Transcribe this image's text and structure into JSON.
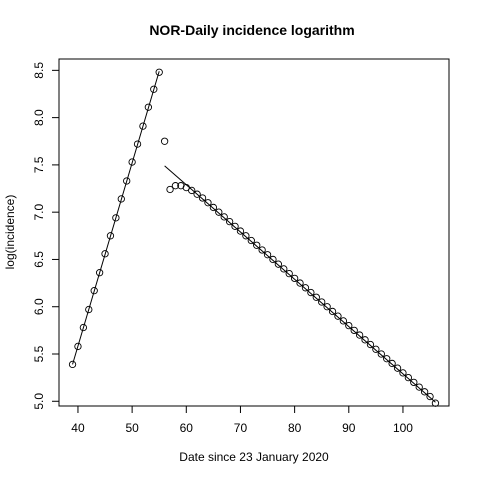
{
  "chart_data": {
    "type": "scatter",
    "title": "NOR-Daily incidence logarithm",
    "xlabel": "Date since 23 January 2020",
    "ylabel": "log(incidence)",
    "xlim": [
      36.5,
      108.5
    ],
    "ylim": [
      4.95,
      8.62
    ],
    "xticks": [
      40,
      50,
      60,
      70,
      80,
      90,
      100
    ],
    "yticks": [
      5.0,
      5.5,
      6.0,
      6.5,
      7.0,
      7.5,
      8.0,
      8.5
    ],
    "series": [
      {
        "x": [
          39,
          40,
          41,
          42,
          43,
          44,
          45,
          46,
          47,
          48,
          49,
          50,
          51,
          52,
          53,
          54,
          55,
          56,
          57,
          58,
          59,
          60,
          61,
          62,
          63,
          64,
          65,
          66,
          67,
          68,
          69,
          70,
          71,
          72,
          73,
          74,
          75,
          76,
          77,
          78,
          79,
          80,
          81,
          82,
          83,
          84,
          85,
          86,
          87,
          88,
          89,
          90,
          91,
          92,
          93,
          94,
          95,
          96,
          97,
          98,
          99,
          100,
          101,
          102,
          103,
          104,
          105,
          106
        ],
        "y": [
          5.39,
          5.58,
          5.78,
          5.97,
          6.17,
          6.36,
          6.56,
          6.75,
          6.94,
          7.14,
          7.33,
          7.53,
          7.72,
          7.91,
          8.11,
          8.3,
          8.48,
          7.75,
          7.24,
          7.28,
          7.28,
          7.26,
          7.23,
          7.19,
          7.15,
          7.1,
          7.05,
          7.0,
          6.95,
          6.9,
          6.85,
          6.8,
          6.75,
          6.7,
          6.65,
          6.6,
          6.55,
          6.5,
          6.45,
          6.4,
          6.35,
          6.3,
          6.25,
          6.2,
          6.15,
          6.1,
          6.05,
          6.0,
          5.95,
          5.9,
          5.85,
          5.8,
          5.75,
          5.7,
          5.65,
          5.6,
          5.55,
          5.5,
          5.45,
          5.4,
          5.35,
          5.3,
          5.25,
          5.2,
          5.15,
          5.1,
          5.05,
          4.98
        ]
      }
    ],
    "fit_lines": [
      {
        "x": [
          39,
          55
        ],
        "y": [
          5.39,
          8.49
        ]
      },
      {
        "x": [
          56,
          106
        ],
        "y": [
          7.49,
          4.99
        ]
      }
    ],
    "grid": false
  }
}
